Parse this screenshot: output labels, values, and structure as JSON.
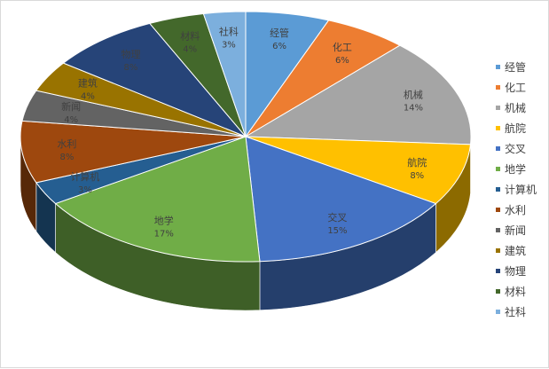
{
  "chart_data": {
    "type": "pie",
    "style": "3d",
    "legend_position": "right",
    "slices": [
      {
        "name": "经管",
        "value": 6,
        "label": "6%",
        "color": "#5B9BD5"
      },
      {
        "name": "化工",
        "value": 6,
        "label": "6%",
        "color": "#ED7D31"
      },
      {
        "name": "机械",
        "value": 14,
        "label": "14%",
        "color": "#A5A5A5"
      },
      {
        "name": "航院",
        "value": 8,
        "label": "8%",
        "color": "#FFC000"
      },
      {
        "name": "交叉",
        "value": 15,
        "label": "15%",
        "color": "#4472C4"
      },
      {
        "name": "地学",
        "value": 17,
        "label": "17%",
        "color": "#70AD47"
      },
      {
        "name": "计算机",
        "value": 3,
        "label": "3%",
        "color": "#255E91"
      },
      {
        "name": "水利",
        "value": 8,
        "label": "8%",
        "color": "#9E480E"
      },
      {
        "name": "新闻",
        "value": 4,
        "label": "4%",
        "color": "#636363"
      },
      {
        "name": "建筑",
        "value": 4,
        "label": "4%",
        "color": "#997300"
      },
      {
        "name": "物理",
        "value": 8,
        "label": "8%",
        "color": "#264478"
      },
      {
        "name": "材料",
        "value": 4,
        "label": "4%",
        "color": "#43682B"
      },
      {
        "name": "社科",
        "value": 3,
        "label": "3%",
        "color": "#7CAFDD"
      }
    ]
  }
}
